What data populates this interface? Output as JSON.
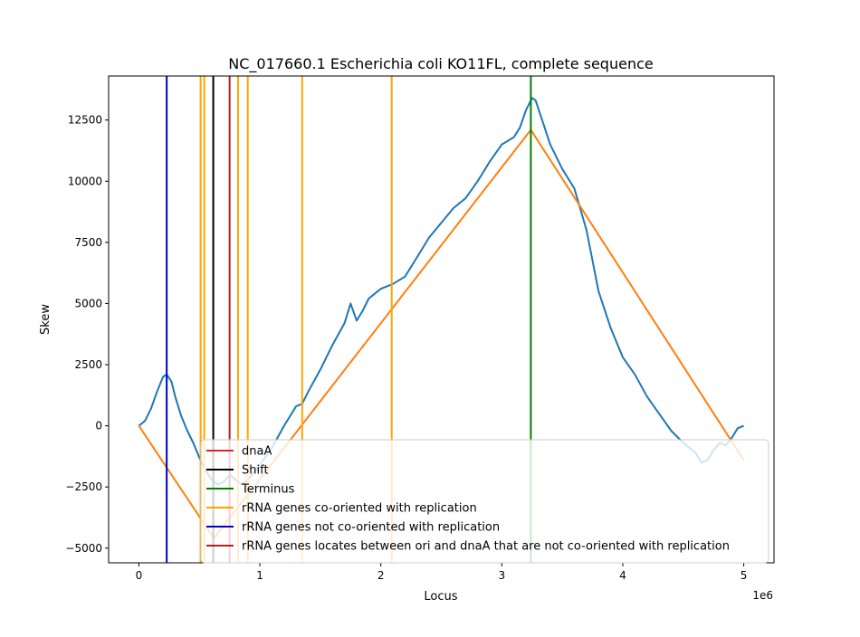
{
  "colors": {
    "skew": "#1f77b4",
    "fit": "#ff7f0e",
    "dnaA": "#d62728",
    "shift": "#000000",
    "terminus": "#008000",
    "rrna_co": "#ffa500",
    "rrna_not_co": "#0000cd",
    "rrna_between": "#b22222"
  },
  "chart_data": {
    "type": "line",
    "title": "NC_017660.1 Escherichia coli KO11FL, complete sequence",
    "xlabel": "Locus",
    "ylabel": "Skew",
    "x_offset_label": "1e6",
    "xlim": [
      -250000,
      5250000
    ],
    "ylim": [
      -5600,
      14300
    ],
    "x_ticks": [
      0,
      1000000,
      2000000,
      3000000,
      4000000,
      5000000
    ],
    "x_tick_labels": [
      "0",
      "1",
      "2",
      "3",
      "4",
      "5"
    ],
    "y_ticks": [
      -5000,
      -2500,
      0,
      2500,
      5000,
      7500,
      10000,
      12500
    ],
    "y_tick_labels": [
      "−5000",
      "−2500",
      "0",
      "2500",
      "5000",
      "7500",
      "10000",
      "12500"
    ],
    "grid": false,
    "legend_position": "lower-right",
    "series": [
      {
        "name": "",
        "kind": "skew",
        "x": [
          0,
          50000,
          100000,
          150000,
          200000,
          230000,
          270000,
          300000,
          350000,
          400000,
          450000,
          500000,
          550000,
          600000,
          650000,
          700000,
          750000,
          800000,
          850000,
          900000,
          950000,
          1000000,
          1100000,
          1200000,
          1300000,
          1350000,
          1400000,
          1500000,
          1600000,
          1700000,
          1750000,
          1800000,
          1850000,
          1900000,
          2000000,
          2100000,
          2200000,
          2300000,
          2400000,
          2500000,
          2600000,
          2700000,
          2800000,
          2900000,
          3000000,
          3100000,
          3150000,
          3200000,
          3250000,
          3280000,
          3320000,
          3400000,
          3500000,
          3600000,
          3700000,
          3800000,
          3900000,
          4000000,
          4100000,
          4200000,
          4300000,
          4400000,
          4500000,
          4600000,
          4650000,
          4700000,
          4750000,
          4800000,
          4850000,
          4900000,
          4950000,
          5000000
        ],
        "values": [
          0,
          200,
          700,
          1400,
          2000,
          2100,
          1800,
          1200,
          400,
          -200,
          -700,
          -1300,
          -1800,
          -2200,
          -2400,
          -2300,
          -2000,
          -2200,
          -2400,
          -2200,
          -1900,
          -1600,
          -900,
          0,
          800,
          900,
          1400,
          2300,
          3300,
          4200,
          5000,
          4300,
          4700,
          5200,
          5600,
          5800,
          6100,
          6900,
          7700,
          8300,
          8900,
          9300,
          10000,
          10800,
          11500,
          11800,
          12200,
          12900,
          13400,
          13300,
          12700,
          11500,
          10500,
          9700,
          8000,
          5500,
          4000,
          2800,
          2100,
          1200,
          500,
          -200,
          -700,
          -1100,
          -1500,
          -1400,
          -1000,
          -700,
          -800,
          -500,
          -100,
          0
        ]
      },
      {
        "name": "",
        "kind": "fit",
        "x": [
          0,
          620000,
          3240000,
          5000000
        ],
        "values": [
          0,
          -4600,
          12100,
          -1400
        ]
      }
    ],
    "vertical_lines": [
      {
        "x": 230000,
        "name": "rRNA genes not co-oriented with replication",
        "color_key": "rrna_not_co"
      },
      {
        "x": 510000,
        "name": "rRNA genes co-oriented with replication",
        "color_key": "rrna_co"
      },
      {
        "x": 540000,
        "name": "rRNA genes co-oriented with replication",
        "color_key": "rrna_co"
      },
      {
        "x": 615000,
        "name": "Shift",
        "color_key": "shift"
      },
      {
        "x": 750000,
        "name": "rRNA genes locates between ori and dnaA that are not co-oriented with replication",
        "color_key": "rrna_between"
      },
      {
        "x": 820000,
        "name": "rRNA genes co-oriented with replication",
        "color_key": "rrna_co"
      },
      {
        "x": 900000,
        "name": "rRNA genes co-oriented with replication",
        "color_key": "rrna_co"
      },
      {
        "x": 1350000,
        "name": "rRNA genes co-oriented with replication",
        "color_key": "rrna_co"
      },
      {
        "x": 2090000,
        "name": "rRNA genes co-oriented with replication",
        "color_key": "rrna_co"
      },
      {
        "x": 3240000,
        "name": "Terminus",
        "color_key": "terminus"
      }
    ],
    "legend": [
      {
        "label": "dnaA",
        "color_key": "dnaA"
      },
      {
        "label": "Shift",
        "color_key": "shift"
      },
      {
        "label": "Terminus",
        "color_key": "terminus"
      },
      {
        "label": "rRNA genes co-oriented with replication",
        "color_key": "rrna_co"
      },
      {
        "label": "rRNA genes not co-oriented with replication",
        "color_key": "rrna_not_co"
      },
      {
        "label": "rRNA genes locates between ori and dnaA that are not co-oriented with replication",
        "color_key": "rrna_between"
      }
    ]
  }
}
